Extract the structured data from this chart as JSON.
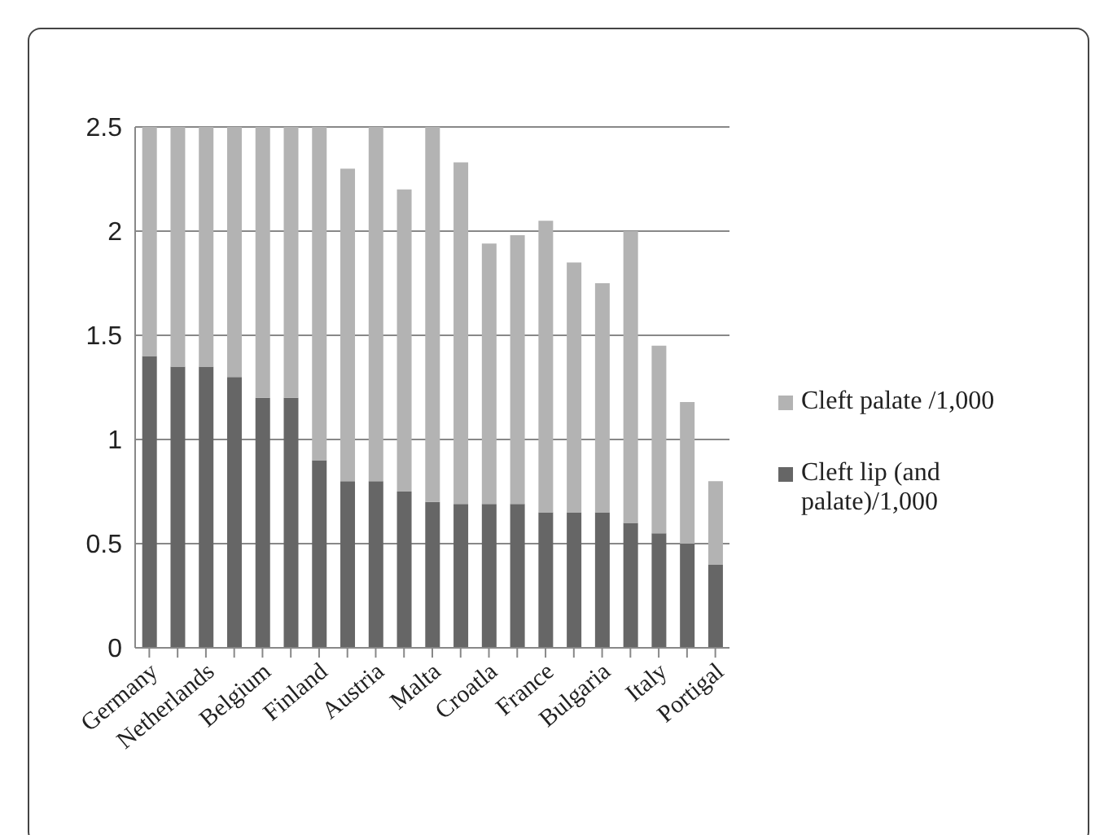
{
  "chart_data": {
    "type": "bar",
    "stacked": true,
    "categories": [
      "Germany",
      null,
      "Netherlands",
      null,
      "Belgium",
      null,
      "Finland",
      null,
      "Austria",
      null,
      "Malta",
      null,
      "Croatla",
      null,
      "France",
      null,
      "Bulgaria",
      null,
      "Italy",
      null,
      "Portigal"
    ],
    "series": [
      {
        "name": "Cleft lip (and palate)/1,000",
        "color": "#666666",
        "values": [
          1.4,
          1.35,
          1.35,
          1.3,
          1.2,
          1.2,
          0.9,
          0.8,
          0.8,
          0.75,
          0.7,
          0.69,
          0.69,
          0.69,
          0.65,
          0.65,
          0.65,
          0.6,
          0.55,
          0.5,
          0.4
        ]
      },
      {
        "name": "Cleft palate /1,000",
        "color": "#b3b3b3",
        "values": [
          1.1,
          1.15,
          1.15,
          1.2,
          1.3,
          1.3,
          1.6,
          1.5,
          1.7,
          1.45,
          1.8,
          1.64,
          1.25,
          1.29,
          1.4,
          1.2,
          1.1,
          1.4,
          0.9,
          0.68,
          0.4
        ]
      }
    ],
    "ylim": [
      0,
      2.5
    ],
    "yticks": [
      0,
      0.5,
      1,
      1.5,
      2,
      2.5
    ],
    "grid": "y",
    "legend": "right"
  }
}
